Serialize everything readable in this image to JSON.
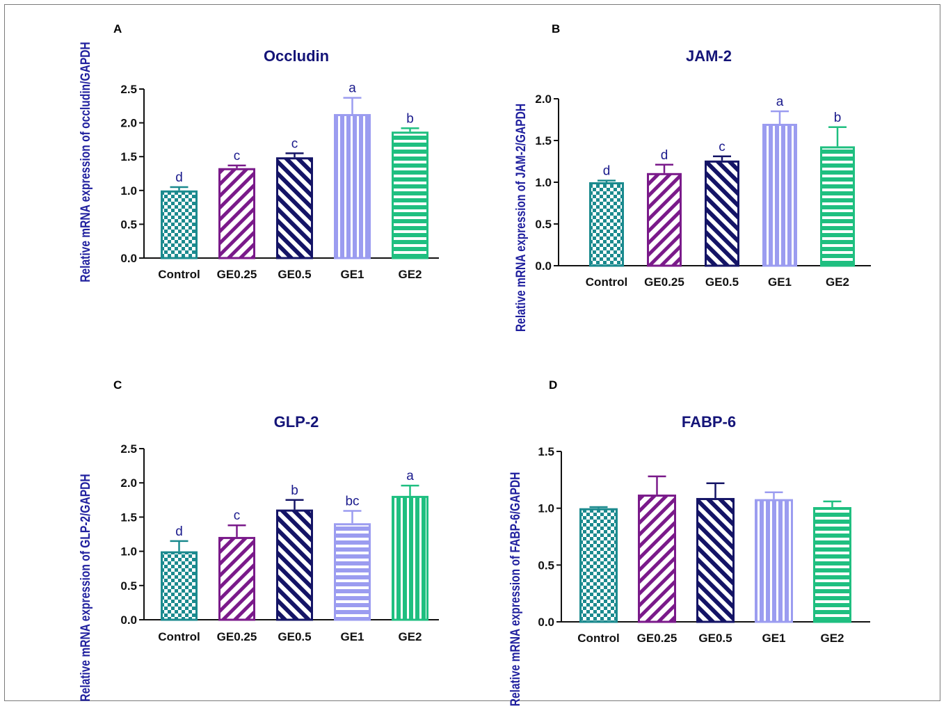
{
  "chart_data": [
    {
      "type": "bar",
      "panel": "A",
      "title": "Occludin",
      "ylabel": "Relative mRNA expression of occludin/GAPDH",
      "categories": [
        "Control",
        "GE0.25",
        "GE0.5",
        "GE1",
        "GE2"
      ],
      "values": [
        1.0,
        1.33,
        1.49,
        2.13,
        1.87
      ],
      "errors": [
        0.05,
        0.04,
        0.06,
        0.24,
        0.05
      ],
      "significance": [
        "d",
        "c",
        "c",
        "a",
        "b"
      ],
      "ylim": [
        0,
        2.5
      ],
      "yticks": [
        "0.0",
        "0.5",
        "1.0",
        "1.5",
        "2.0",
        "2.5"
      ],
      "patterns": [
        "checker",
        "diag-left",
        "diag-right",
        "vertical",
        "horizontal"
      ]
    },
    {
      "type": "bar",
      "panel": "B",
      "title": "JAM-2",
      "ylabel": "Relative mRNA expression of JAM-2/GAPDH",
      "categories": [
        "Control",
        "GE0.25",
        "GE0.5",
        "GE1",
        "GE2"
      ],
      "values": [
        1.0,
        1.11,
        1.26,
        1.7,
        1.43
      ],
      "errors": [
        0.02,
        0.1,
        0.05,
        0.15,
        0.23
      ],
      "significance": [
        "d",
        "d",
        "c",
        "a",
        "b"
      ],
      "ylim": [
        0,
        2.0
      ],
      "yticks": [
        "0.0",
        "0.5",
        "1.0",
        "1.5",
        "2.0"
      ],
      "patterns": [
        "checker",
        "diag-left",
        "diag-right",
        "vertical",
        "horizontal"
      ]
    },
    {
      "type": "bar",
      "panel": "C",
      "title": "GLP-2",
      "ylabel": "Relative mRNA expression of GLP-2/GAPDH",
      "categories": [
        "Control",
        "GE0.25",
        "GE0.5",
        "GE1",
        "GE2"
      ],
      "values": [
        1.0,
        1.21,
        1.61,
        1.41,
        1.81
      ],
      "errors": [
        0.15,
        0.17,
        0.14,
        0.18,
        0.15
      ],
      "significance": [
        "d",
        "c",
        "b",
        "bc",
        "a"
      ],
      "ylim": [
        0,
        2.5
      ],
      "yticks": [
        "0.0",
        "0.5",
        "1.0",
        "1.5",
        "2.0",
        "2.5"
      ],
      "patterns": [
        "checker",
        "diag-left",
        "diag-right",
        "horizontal",
        "vertical"
      ]
    },
    {
      "type": "bar",
      "panel": "D",
      "title": "FABP-6",
      "ylabel": "Relative mRNA expression of FABP-6/GAPDH",
      "categories": [
        "Control",
        "GE0.25",
        "GE0.5",
        "GE1",
        "GE2"
      ],
      "values": [
        1.0,
        1.12,
        1.09,
        1.08,
        1.01
      ],
      "errors": [
        0.01,
        0.16,
        0.13,
        0.06,
        0.05
      ],
      "significance": [
        "",
        "",
        "",
        "",
        ""
      ],
      "ylim": [
        0,
        1.5
      ],
      "yticks": [
        "0.0",
        "0.5",
        "1.0",
        "1.5"
      ],
      "patterns": [
        "checker",
        "diag-left",
        "diag-right",
        "vertical",
        "horizontal"
      ]
    }
  ],
  "colors": {
    "control": "#1b8a8e",
    "ge025": "#7a1a8a",
    "ge05": "#141466",
    "ge1": "#9b9cf0",
    "ge2": "#1fbf80",
    "sig_text": "#1a1a8c",
    "title_text": "#141478",
    "axis": "#111111"
  }
}
